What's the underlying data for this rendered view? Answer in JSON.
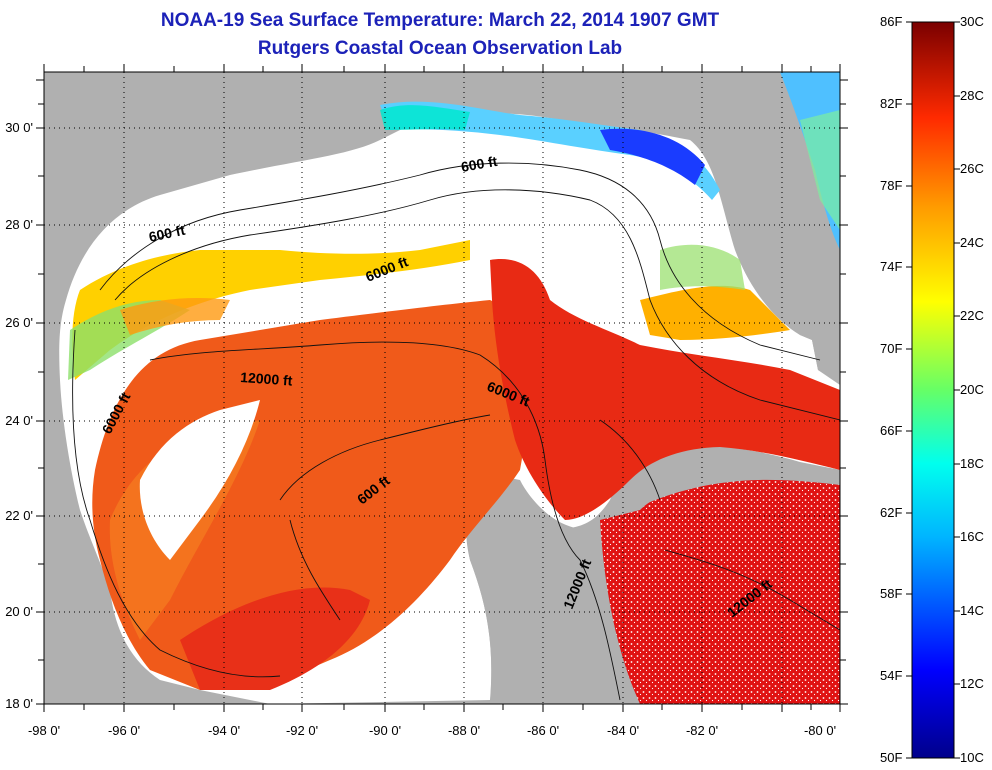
{
  "title": "NOAA-19 Sea Surface Temperature:  March 22, 2014 1907 GMT",
  "subtitle": "Rutgers Coastal Ocean Observation Lab",
  "axes": {
    "x_ticks": [
      "-98 0'",
      "-96 0'",
      "-94 0'",
      "-92 0'",
      "-90 0'",
      "-88 0'",
      "-86 0'",
      "-84 0'",
      "-82 0'",
      "-80 0'"
    ],
    "y_ticks": [
      "30 0'",
      "28 0'",
      "26 0'",
      "24 0'",
      "22 0'",
      "20 0'",
      "18 0'"
    ]
  },
  "contour_labels": {
    "c1": "600 ft",
    "c2": "600 ft",
    "c3": "6000 ft",
    "c4": "12000 ft",
    "c5": "6000 ft",
    "c6": "6000 ft",
    "c7": "600 ft",
    "c8": "12000 ft",
    "c9": "12000 ft"
  },
  "colorbar": {
    "fahrenheit": [
      "86F",
      "82F",
      "78F",
      "74F",
      "70F",
      "66F",
      "62F",
      "58F",
      "54F",
      "50F"
    ],
    "celsius": [
      "30C",
      "28C",
      "26C",
      "24C",
      "22C",
      "20C",
      "18C",
      "16C",
      "14C",
      "12C",
      "10C"
    ]
  },
  "colors": {
    "title": "#1c22b8",
    "land": "#b0b0b0",
    "cloud": "#ffffff",
    "warm": "#ee3c14",
    "hot": "#dc1414"
  }
}
